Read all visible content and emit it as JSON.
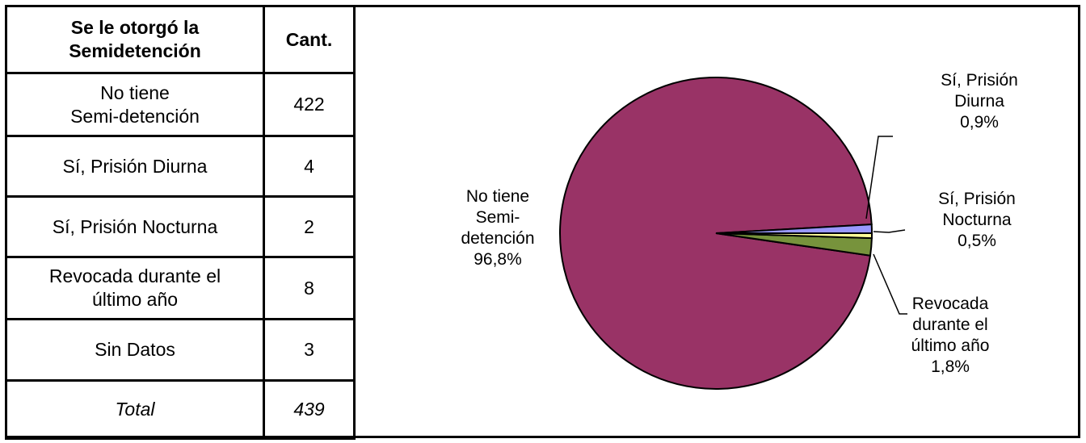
{
  "table": {
    "header_category": [
      "Se le otorgó la",
      "Semidetención"
    ],
    "header_count": "Cant.",
    "rows": [
      {
        "category": [
          "No tiene",
          "Semi-detención"
        ],
        "count": "422"
      },
      {
        "category": [
          "Sí, Prisión Diurna"
        ],
        "count": "4"
      },
      {
        "category": [
          "Sí, Prisión Nocturna"
        ],
        "count": "2"
      },
      {
        "category": [
          "Revocada durante el",
          "último año"
        ],
        "count": "8"
      },
      {
        "category": [
          "Sin Datos"
        ],
        "count": "3"
      }
    ],
    "total_label": "Total",
    "total_count": "439"
  },
  "chart_data": {
    "type": "pie",
    "slices": [
      {
        "label": [
          "No tiene",
          "Semi-",
          "detención",
          "96,8%"
        ],
        "percent": 96.8,
        "color": "#993366"
      },
      {
        "label": [
          "Sí, Prisión",
          "Diurna",
          "0,9%"
        ],
        "percent": 0.9,
        "color": "#9999FF"
      },
      {
        "label": [
          "Sí, Prisión",
          "Nocturna",
          "0,5%"
        ],
        "percent": 0.5,
        "color": "#FFFF99"
      },
      {
        "label": [
          "Revocada",
          "durante el",
          "último año",
          "1,8%"
        ],
        "percent": 1.8,
        "color": "#77933C"
      }
    ]
  }
}
